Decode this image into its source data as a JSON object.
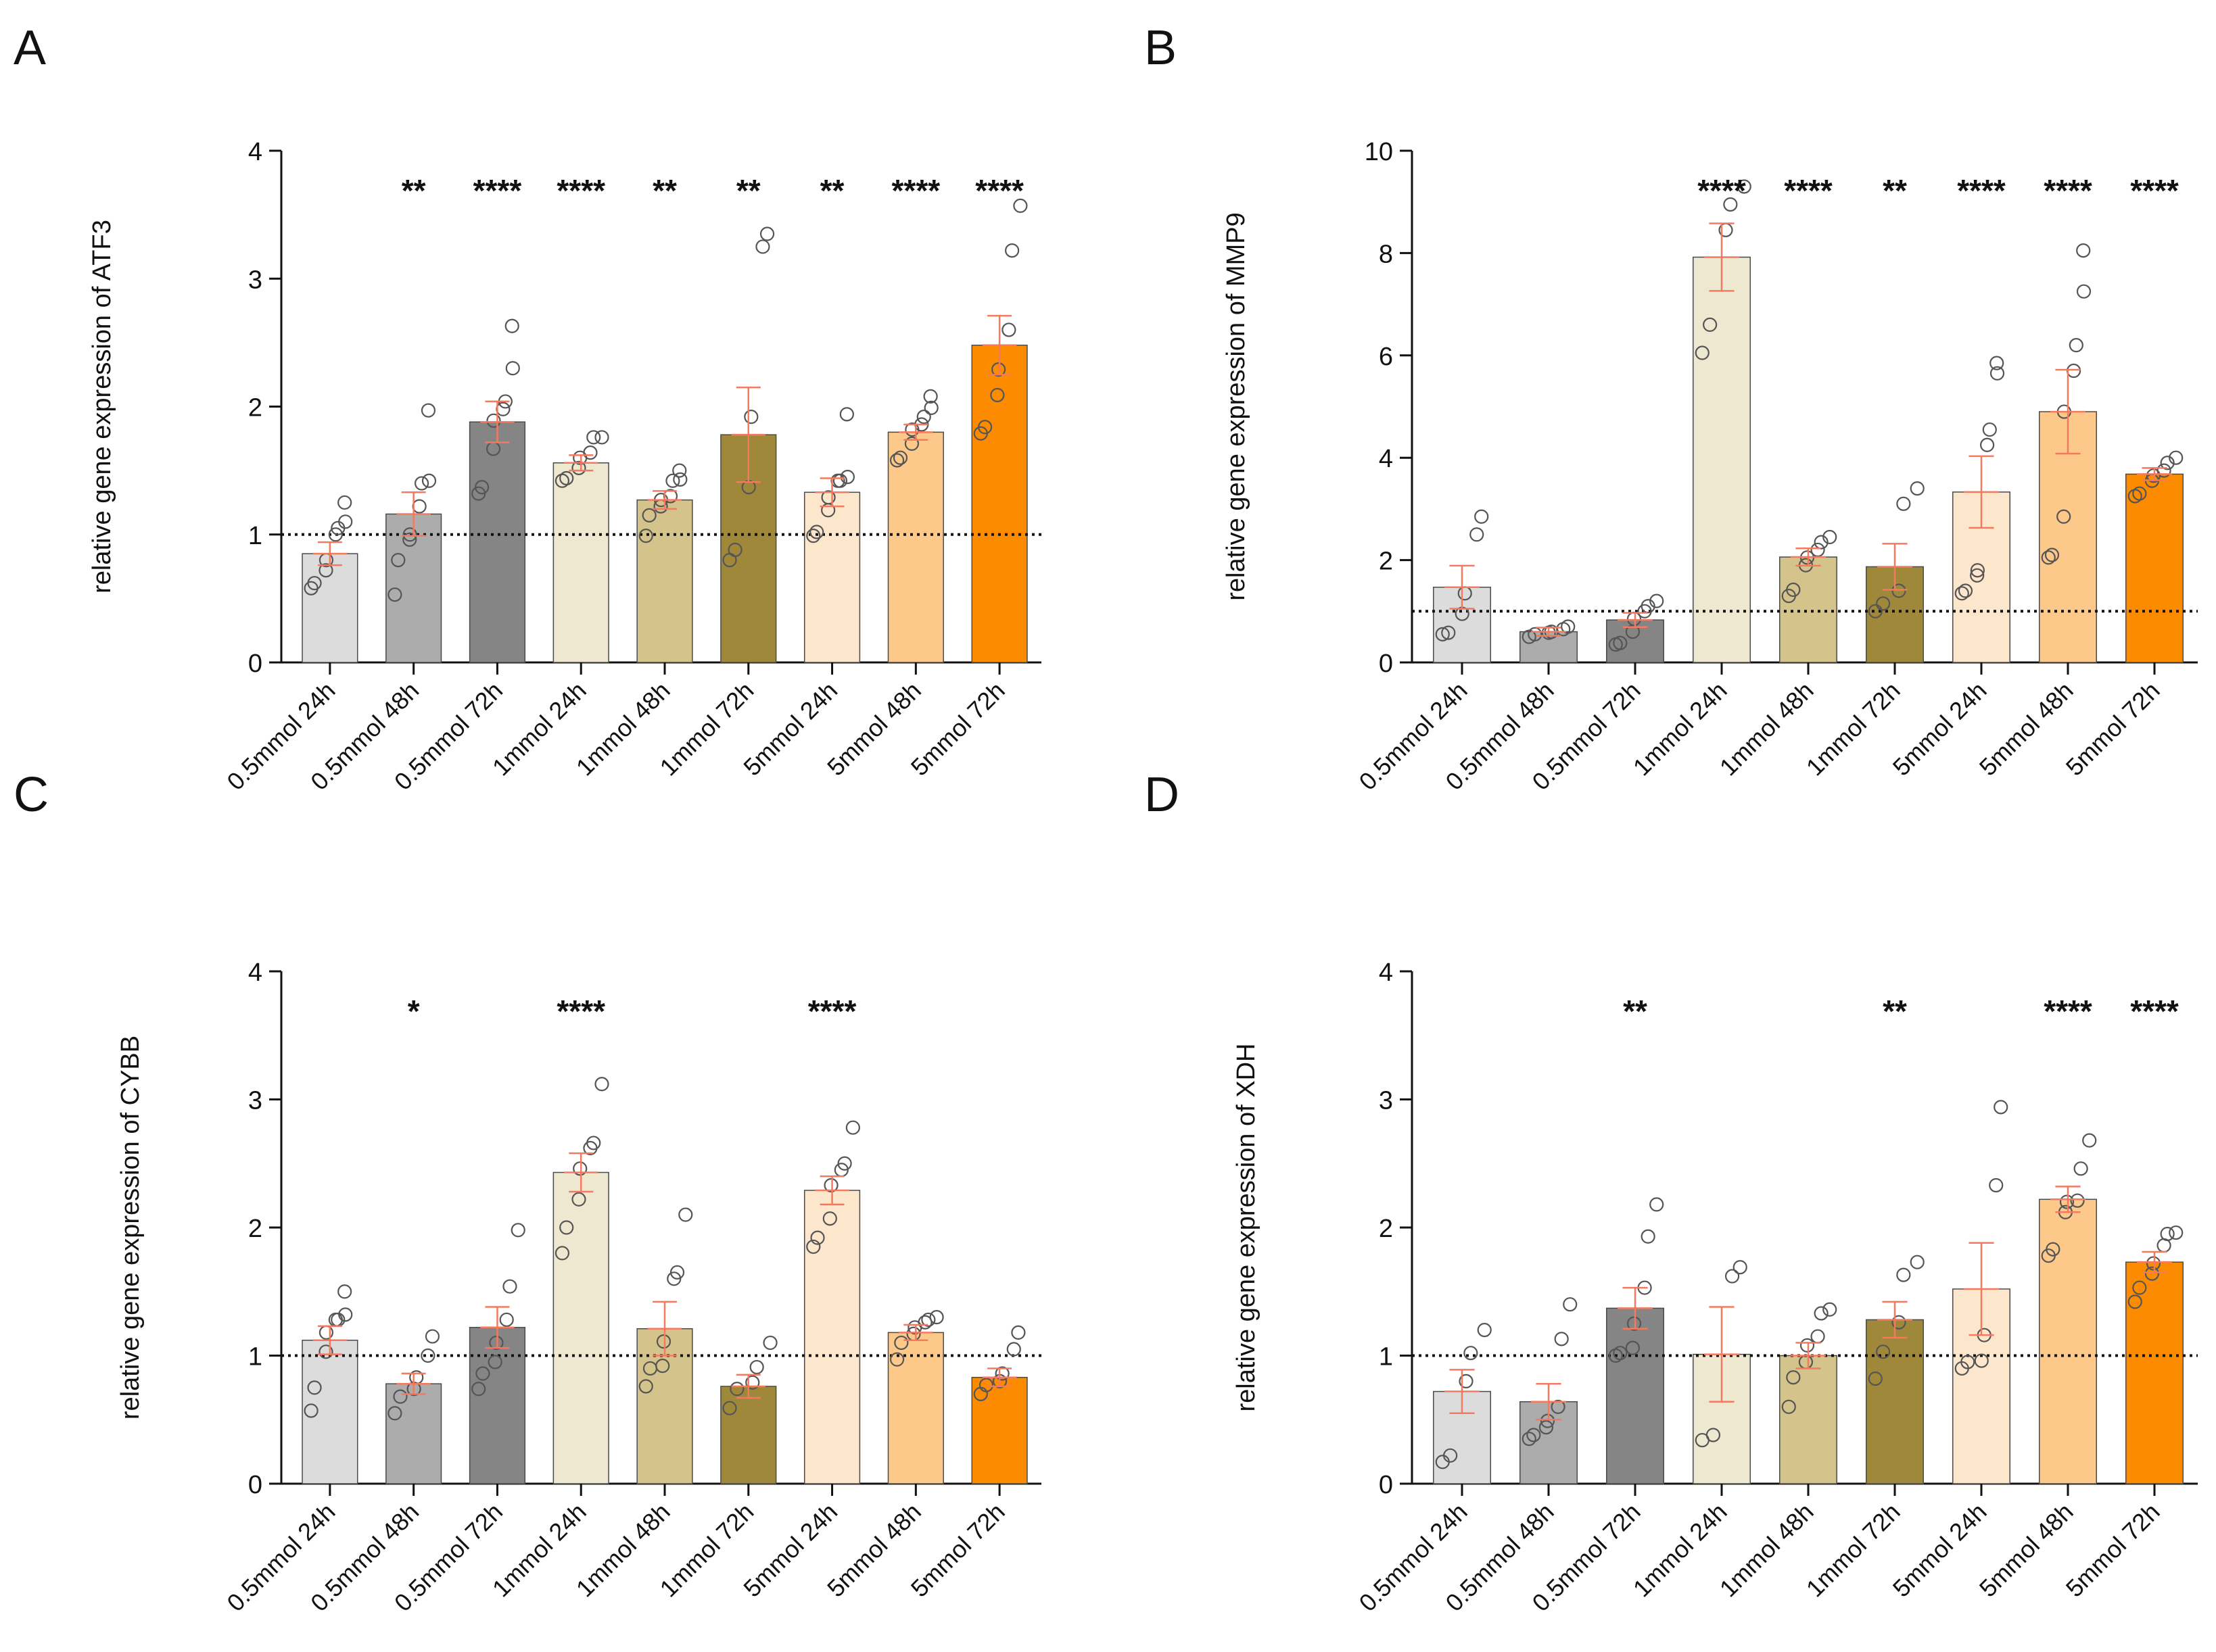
{
  "figure": {
    "categories": [
      "0.5mmol 24h",
      "0.5mmol 48h",
      "0.5mmol 72h",
      "1mmol 24h",
      "1mmol 48h",
      "1mmol 72h",
      "5mmol 24h",
      "5mmol 48h",
      "5mmol 72h"
    ],
    "bar_colors": [
      "#dcdcdc",
      "#acacac",
      "#858585",
      "#efe8d1",
      "#d4c38b",
      "#a0883a",
      "#fde7cc",
      "#fcc98b",
      "#fd8b00"
    ],
    "error_color": "#f37a5f",
    "reference_line": 1
  },
  "chart_data": [
    {
      "panel": "A",
      "type": "bar",
      "ylabel": "relative gene expression of ATF3",
      "ylim": [
        0,
        4
      ],
      "yticks": [
        0,
        1,
        2,
        3,
        4
      ],
      "values": [
        0.85,
        1.16,
        1.88,
        1.56,
        1.27,
        1.78,
        1.33,
        1.8,
        2.48
      ],
      "sem": [
        0.09,
        0.17,
        0.16,
        0.06,
        0.07,
        0.37,
        0.11,
        0.06,
        0.23
      ],
      "significance": [
        "",
        "**",
        "****",
        "****",
        "**",
        "**",
        "**",
        "****",
        "****"
      ],
      "points": [
        [
          0.58,
          0.62,
          0.72,
          0.8,
          1.0,
          1.05,
          1.1,
          1.25
        ],
        [
          0.53,
          0.8,
          0.96,
          1.0,
          1.22,
          1.4,
          1.42,
          1.97
        ],
        [
          1.32,
          1.37,
          1.67,
          1.89,
          1.98,
          2.04,
          2.3,
          2.63
        ],
        [
          1.42,
          1.44,
          1.52,
          1.6,
          1.64,
          1.76,
          1.76
        ],
        [
          0.99,
          1.15,
          1.22,
          1.27,
          1.3,
          1.42,
          1.43,
          1.5
        ],
        [
          0.8,
          0.88,
          1.37,
          1.92,
          3.25,
          3.35
        ],
        [
          0.99,
          1.02,
          1.19,
          1.29,
          1.42,
          1.42,
          1.45,
          1.94
        ],
        [
          1.58,
          1.6,
          1.71,
          1.82,
          1.86,
          1.92,
          1.99,
          2.08
        ],
        [
          1.79,
          1.84,
          2.09,
          2.29,
          2.6,
          3.22,
          3.57
        ]
      ]
    },
    {
      "panel": "B",
      "type": "bar",
      "ylabel": "relative gene expression of MMP9",
      "ylim": [
        0,
        10
      ],
      "yticks": [
        0,
        2,
        4,
        6,
        8,
        10
      ],
      "values": [
        1.47,
        0.6,
        0.83,
        7.92,
        2.06,
        1.87,
        3.33,
        4.9,
        3.68
      ],
      "sem": [
        0.42,
        0.08,
        0.14,
        0.66,
        0.17,
        0.45,
        0.7,
        0.82,
        0.12
      ],
      "significance": [
        "",
        "",
        "",
        "****",
        "****",
        "**",
        "****",
        "****",
        "****"
      ],
      "points": [
        [
          0.55,
          0.58,
          0.95,
          1.35,
          2.5,
          2.85
        ],
        [
          0.5,
          0.55,
          0.58,
          0.6,
          0.65,
          0.7
        ],
        [
          0.35,
          0.38,
          0.6,
          0.85,
          1.0,
          1.1,
          1.2
        ],
        [
          6.05,
          6.6,
          8.45,
          8.95,
          9.3
        ],
        [
          1.3,
          1.42,
          1.9,
          2.05,
          2.2,
          2.35,
          2.45
        ],
        [
          1.0,
          1.15,
          1.4,
          3.1,
          3.4
        ],
        [
          1.35,
          1.4,
          1.7,
          1.8,
          4.25,
          4.55,
          5.65,
          5.85
        ],
        [
          2.05,
          2.1,
          2.85,
          4.9,
          5.7,
          6.2,
          7.25,
          8.05
        ],
        [
          3.25,
          3.3,
          3.55,
          3.65,
          3.75,
          3.9,
          4.0
        ]
      ]
    },
    {
      "panel": "C",
      "type": "bar",
      "ylabel": "relative gene expression of CYBB",
      "ylim": [
        0,
        4
      ],
      "yticks": [
        0,
        1,
        2,
        3,
        4
      ],
      "values": [
        1.12,
        0.78,
        1.22,
        2.43,
        1.21,
        0.76,
        2.29,
        1.18,
        0.83
      ],
      "sem": [
        0.11,
        0.08,
        0.16,
        0.15,
        0.21,
        0.09,
        0.11,
        0.06,
        0.07
      ],
      "significance": [
        "",
        "*",
        "",
        "****",
        "",
        "",
        "****",
        "",
        ""
      ],
      "points": [
        [
          0.57,
          0.75,
          1.03,
          1.18,
          1.28,
          1.28,
          1.32,
          1.5
        ],
        [
          0.55,
          0.68,
          0.74,
          0.83,
          1.0,
          1.15
        ],
        [
          0.74,
          0.86,
          0.95,
          1.1,
          1.28,
          1.54,
          1.98
        ],
        [
          1.8,
          2.0,
          2.22,
          2.46,
          2.62,
          2.66,
          3.12
        ],
        [
          0.76,
          0.9,
          0.92,
          1.11,
          1.6,
          1.65,
          2.1
        ],
        [
          0.59,
          0.74,
          0.79,
          0.91,
          1.1
        ],
        [
          1.85,
          1.92,
          2.07,
          2.33,
          2.45,
          2.5,
          2.78
        ],
        [
          0.97,
          1.1,
          1.17,
          1.22,
          1.26,
          1.28,
          1.3
        ],
        [
          0.7,
          0.77,
          0.8,
          0.86,
          1.05,
          1.18
        ]
      ]
    },
    {
      "panel": "D",
      "type": "bar",
      "ylabel": "relative gene expression of XDH",
      "ylim": [
        0,
        4
      ],
      "yticks": [
        0,
        1,
        2,
        3,
        4
      ],
      "values": [
        0.72,
        0.64,
        1.37,
        1.01,
        1.0,
        1.28,
        1.52,
        2.22,
        1.73
      ],
      "sem": [
        0.17,
        0.14,
        0.16,
        0.37,
        0.1,
        0.14,
        0.36,
        0.1,
        0.08
      ],
      "significance": [
        "",
        "",
        "**",
        "",
        "",
        "**",
        "",
        "****",
        "****"
      ],
      "points": [
        [
          0.17,
          0.22,
          0.8,
          1.02,
          1.2
        ],
        [
          0.35,
          0.38,
          0.44,
          0.49,
          0.6,
          1.13,
          1.4
        ],
        [
          1.0,
          1.02,
          1.06,
          1.25,
          1.53,
          1.93,
          2.18
        ],
        [
          0.34,
          0.38,
          1.62,
          1.69
        ],
        [
          0.6,
          0.83,
          0.95,
          1.08,
          1.15,
          1.33,
          1.36
        ],
        [
          0.82,
          1.03,
          1.26,
          1.63,
          1.73
        ],
        [
          0.9,
          0.95,
          0.96,
          1.16,
          2.33,
          2.94
        ],
        [
          1.78,
          1.83,
          2.12,
          2.2,
          2.21,
          2.46,
          2.68
        ],
        [
          1.42,
          1.53,
          1.64,
          1.72,
          1.86,
          1.95,
          1.96
        ]
      ]
    }
  ]
}
